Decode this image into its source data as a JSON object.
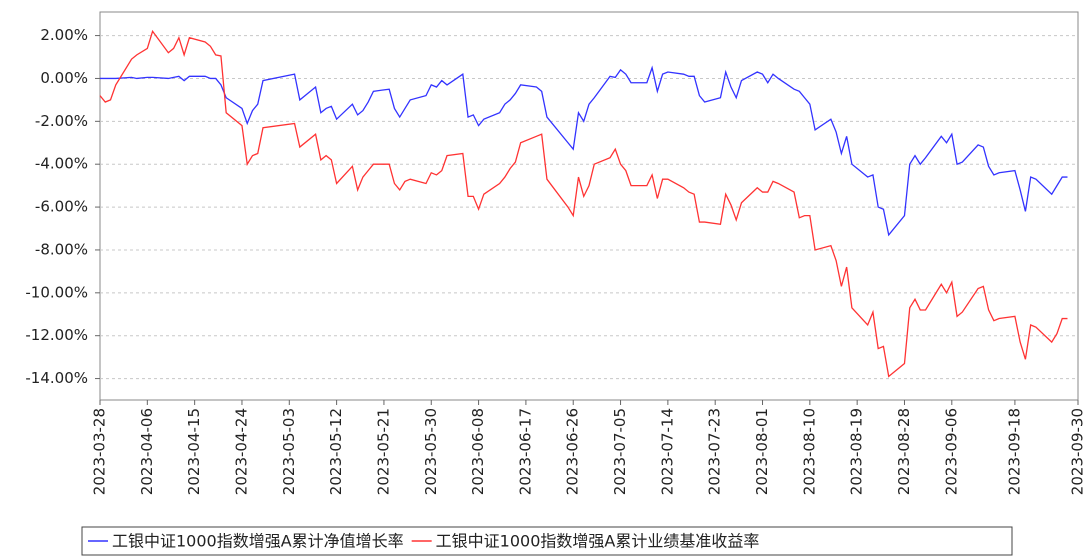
{
  "chart_data": {
    "type": "line",
    "x": [
      "2023-03-28",
      "2023-03-29",
      "2023-03-30",
      "2023-03-31",
      "2023-04-03",
      "2023-04-04",
      "2023-04-06",
      "2023-04-07",
      "2023-04-10",
      "2023-04-11",
      "2023-04-12",
      "2023-04-13",
      "2023-04-14",
      "2023-04-17",
      "2023-04-18",
      "2023-04-19",
      "2023-04-20",
      "2023-04-21",
      "2023-04-24",
      "2023-04-25",
      "2023-04-26",
      "2023-04-27",
      "2023-04-28",
      "2023-05-04",
      "2023-05-05",
      "2023-05-08",
      "2023-05-09",
      "2023-05-10",
      "2023-05-11",
      "2023-05-12",
      "2023-05-15",
      "2023-05-16",
      "2023-05-17",
      "2023-05-18",
      "2023-05-19",
      "2023-05-22",
      "2023-05-23",
      "2023-05-24",
      "2023-05-25",
      "2023-05-26",
      "2023-05-29",
      "2023-05-30",
      "2023-05-31",
      "2023-06-01",
      "2023-06-02",
      "2023-06-05",
      "2023-06-06",
      "2023-06-07",
      "2023-06-08",
      "2023-06-09",
      "2023-06-12",
      "2023-06-13",
      "2023-06-14",
      "2023-06-15",
      "2023-06-16",
      "2023-06-19",
      "2023-06-20",
      "2023-06-21",
      "2023-06-25",
      "2023-06-26",
      "2023-06-27",
      "2023-06-28",
      "2023-06-29",
      "2023-06-30",
      "2023-07-03",
      "2023-07-04",
      "2023-07-05",
      "2023-07-06",
      "2023-07-07",
      "2023-07-10",
      "2023-07-11",
      "2023-07-12",
      "2023-07-13",
      "2023-07-14",
      "2023-07-17",
      "2023-07-18",
      "2023-07-19",
      "2023-07-20",
      "2023-07-21",
      "2023-07-24",
      "2023-07-25",
      "2023-07-26",
      "2023-07-27",
      "2023-07-28",
      "2023-07-31",
      "2023-08-01",
      "2023-08-02",
      "2023-08-03",
      "2023-08-04",
      "2023-08-07",
      "2023-08-08",
      "2023-08-09",
      "2023-08-10",
      "2023-08-11",
      "2023-08-14",
      "2023-08-15",
      "2023-08-16",
      "2023-08-17",
      "2023-08-18",
      "2023-08-21",
      "2023-08-22",
      "2023-08-23",
      "2023-08-24",
      "2023-08-25",
      "2023-08-28",
      "2023-08-29",
      "2023-08-30",
      "2023-08-31",
      "2023-09-01",
      "2023-09-04",
      "2023-09-05",
      "2023-09-06",
      "2023-09-07",
      "2023-09-08",
      "2023-09-11",
      "2023-09-12",
      "2023-09-13",
      "2023-09-14",
      "2023-09-15",
      "2023-09-18",
      "2023-09-19",
      "2023-09-20",
      "2023-09-21",
      "2023-09-22",
      "2023-09-25",
      "2023-09-26",
      "2023-09-27",
      "2023-09-28"
    ],
    "series": [
      {
        "name": "工银中证1000指数增强A累计净值增长率",
        "color": "#3333ff",
        "values": [
          0,
          0,
          0,
          0,
          0.05,
          0,
          0.05,
          0.05,
          0,
          0.05,
          0.1,
          -0.1,
          0.1,
          0.1,
          0,
          0,
          -0.3,
          -0.9,
          -1.4,
          -2.1,
          -1.5,
          -1.2,
          -0.1,
          0.2,
          -1.0,
          -0.4,
          -1.6,
          -1.4,
          -1.3,
          -1.9,
          -1.2,
          -1.7,
          -1.5,
          -1.1,
          -0.6,
          -0.5,
          -1.4,
          -1.8,
          -1.4,
          -1.0,
          -0.8,
          -0.3,
          -0.4,
          -0.1,
          -0.3,
          0.2,
          -1.8,
          -1.7,
          -2.2,
          -1.9,
          -1.6,
          -1.2,
          -1.0,
          -0.7,
          -0.3,
          -0.4,
          -0.6,
          -1.8,
          -3.0,
          -3.3,
          -1.6,
          -2.0,
          -1.2,
          -0.9,
          0.1,
          0.05,
          0.4,
          0.2,
          -0.2,
          -0.2,
          0.5,
          -0.6,
          0.2,
          0.3,
          0.2,
          0.1,
          0.1,
          -0.8,
          -1.1,
          -0.9,
          0.3,
          -0.4,
          -0.9,
          -0.1,
          0.3,
          0.2,
          -0.2,
          0.2,
          0,
          -0.5,
          -0.6,
          -0.9,
          -1.2,
          -2.4,
          -1.9,
          -2.5,
          -3.5,
          -2.7,
          -4.0,
          -4.6,
          -4.5,
          -6.0,
          -6.1,
          -7.3,
          -6.4,
          -4.0,
          -3.6,
          -4.0,
          -3.7,
          -2.7,
          -3.0,
          -2.6,
          -4.0,
          -3.9,
          -3.1,
          -3.2,
          -4.1,
          -4.5,
          -4.4,
          -4.3,
          -5.2,
          -6.2,
          -4.6,
          -4.7,
          -5.4,
          -5.0,
          -4.6,
          -4.6
        ]
      },
      {
        "name": "工银中证1000指数增强A累计业绩基准收益率",
        "color": "#ff3333",
        "values": [
          -0.8,
          -1.1,
          -1.0,
          -0.3,
          0.9,
          1.1,
          1.4,
          2.2,
          1.2,
          1.4,
          1.9,
          1.1,
          1.9,
          1.7,
          1.5,
          1.1,
          1.05,
          -1.6,
          -2.2,
          -4.0,
          -3.6,
          -3.5,
          -2.3,
          -2.1,
          -3.2,
          -2.6,
          -3.8,
          -3.6,
          -3.8,
          -4.9,
          -4.1,
          -5.2,
          -4.6,
          -4.3,
          -4.0,
          -4.0,
          -4.9,
          -5.2,
          -4.8,
          -4.7,
          -4.9,
          -4.4,
          -4.5,
          -4.3,
          -3.6,
          -3.5,
          -5.5,
          -5.5,
          -6.1,
          -5.4,
          -4.9,
          -4.6,
          -4.2,
          -3.9,
          -3.0,
          -2.7,
          -2.6,
          -4.7,
          -6.0,
          -6.4,
          -4.6,
          -5.5,
          -5.0,
          -4.0,
          -3.7,
          -3.3,
          -4.0,
          -4.3,
          -5.0,
          -5.0,
          -4.5,
          -5.6,
          -4.7,
          -4.7,
          -5.1,
          -5.3,
          -5.4,
          -6.7,
          -6.7,
          -6.8,
          -5.4,
          -5.9,
          -6.6,
          -5.8,
          -5.1,
          -5.3,
          -5.3,
          -4.8,
          -4.9,
          -5.3,
          -6.5,
          -6.4,
          -6.4,
          -8.0,
          -7.8,
          -8.5,
          -9.7,
          -8.8,
          -10.7,
          -11.5,
          -10.9,
          -12.6,
          -12.5,
          -13.9,
          -13.3,
          -10.7,
          -10.3,
          -10.8,
          -10.8,
          -9.6,
          -10.0,
          -9.5,
          -11.1,
          -10.9,
          -9.8,
          -9.7,
          -10.8,
          -11.3,
          -11.2,
          -11.1,
          -12.3,
          -13.1,
          -11.5,
          -11.6,
          -12.3,
          -11.9,
          -11.2,
          -11.2
        ]
      }
    ],
    "xlim": [
      "2023-03-28",
      "2023-09-30"
    ],
    "xticks": [
      "2023-03-28",
      "2023-04-06",
      "2023-04-15",
      "2023-04-24",
      "2023-05-03",
      "2023-05-12",
      "2023-05-21",
      "2023-05-30",
      "2023-06-08",
      "2023-06-17",
      "2023-06-26",
      "2023-07-05",
      "2023-07-14",
      "2023-07-23",
      "2023-08-01",
      "2023-08-10",
      "2023-08-19",
      "2023-08-28",
      "2023-09-06",
      "2023-09-18",
      "2023-09-30"
    ],
    "ylim": [
      -15,
      3.1
    ],
    "yticks": [
      {
        "value": 2,
        "label": "2.00%"
      },
      {
        "value": 0,
        "label": "0.00%"
      },
      {
        "value": -2,
        "label": "-2.00%"
      },
      {
        "value": -4,
        "label": "-4.00%"
      },
      {
        "value": -6,
        "label": "-6.00%"
      },
      {
        "value": -8,
        "label": "-8.00%"
      },
      {
        "value": -10,
        "label": "-10.00%"
      },
      {
        "value": -12,
        "label": "-12.00%"
      },
      {
        "value": -14,
        "label": "-14.00%"
      }
    ],
    "grid": true
  }
}
